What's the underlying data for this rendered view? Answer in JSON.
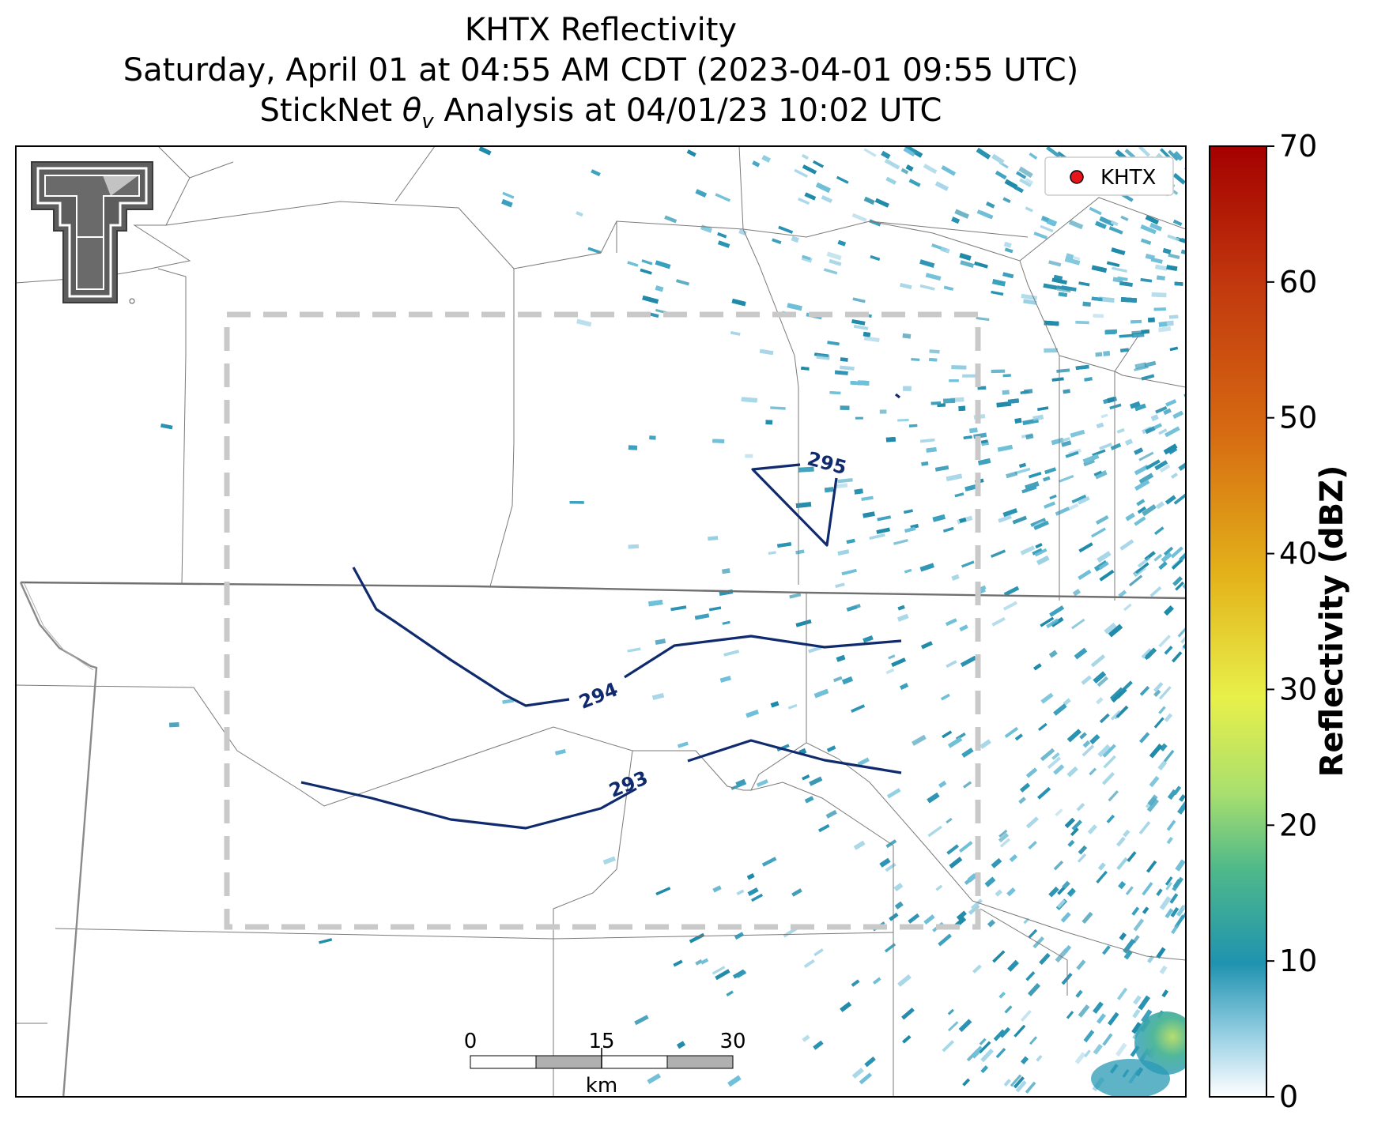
{
  "title": {
    "line1": "KHTX Reflectivity",
    "line2": "Saturday, April 01 at 04:55 AM CDT (2023-04-01 09:55 UTC)",
    "line3_prefix": "StickNet ",
    "line3_symbol": "θ",
    "line3_subscript": "v",
    "line3_suffix": " Analysis at 04/01/23 10:02 UTC"
  },
  "legend": {
    "label": "KHTX",
    "marker_color": "#e8141c"
  },
  "colorbar": {
    "label": "Reflectivity (dBZ)",
    "min": 0,
    "max": 70,
    "ticks": [
      "0",
      "10",
      "20",
      "30",
      "40",
      "50",
      "60",
      "70"
    ]
  },
  "contours": [
    {
      "value": 293,
      "label": "293"
    },
    {
      "value": 294,
      "label": "294"
    },
    {
      "value": 295,
      "label": "295"
    }
  ],
  "scale_bar": {
    "ticks": [
      "0",
      "15",
      "30"
    ],
    "unit": "km"
  },
  "logo": {
    "name": "texas-tech-logo"
  },
  "colors": {
    "contour": "#102a6e",
    "analysis_box": "#c8c8c8",
    "county_lines": "#7a7a7a",
    "state_line": "#707070",
    "echo_main": "#2a93b3"
  }
}
